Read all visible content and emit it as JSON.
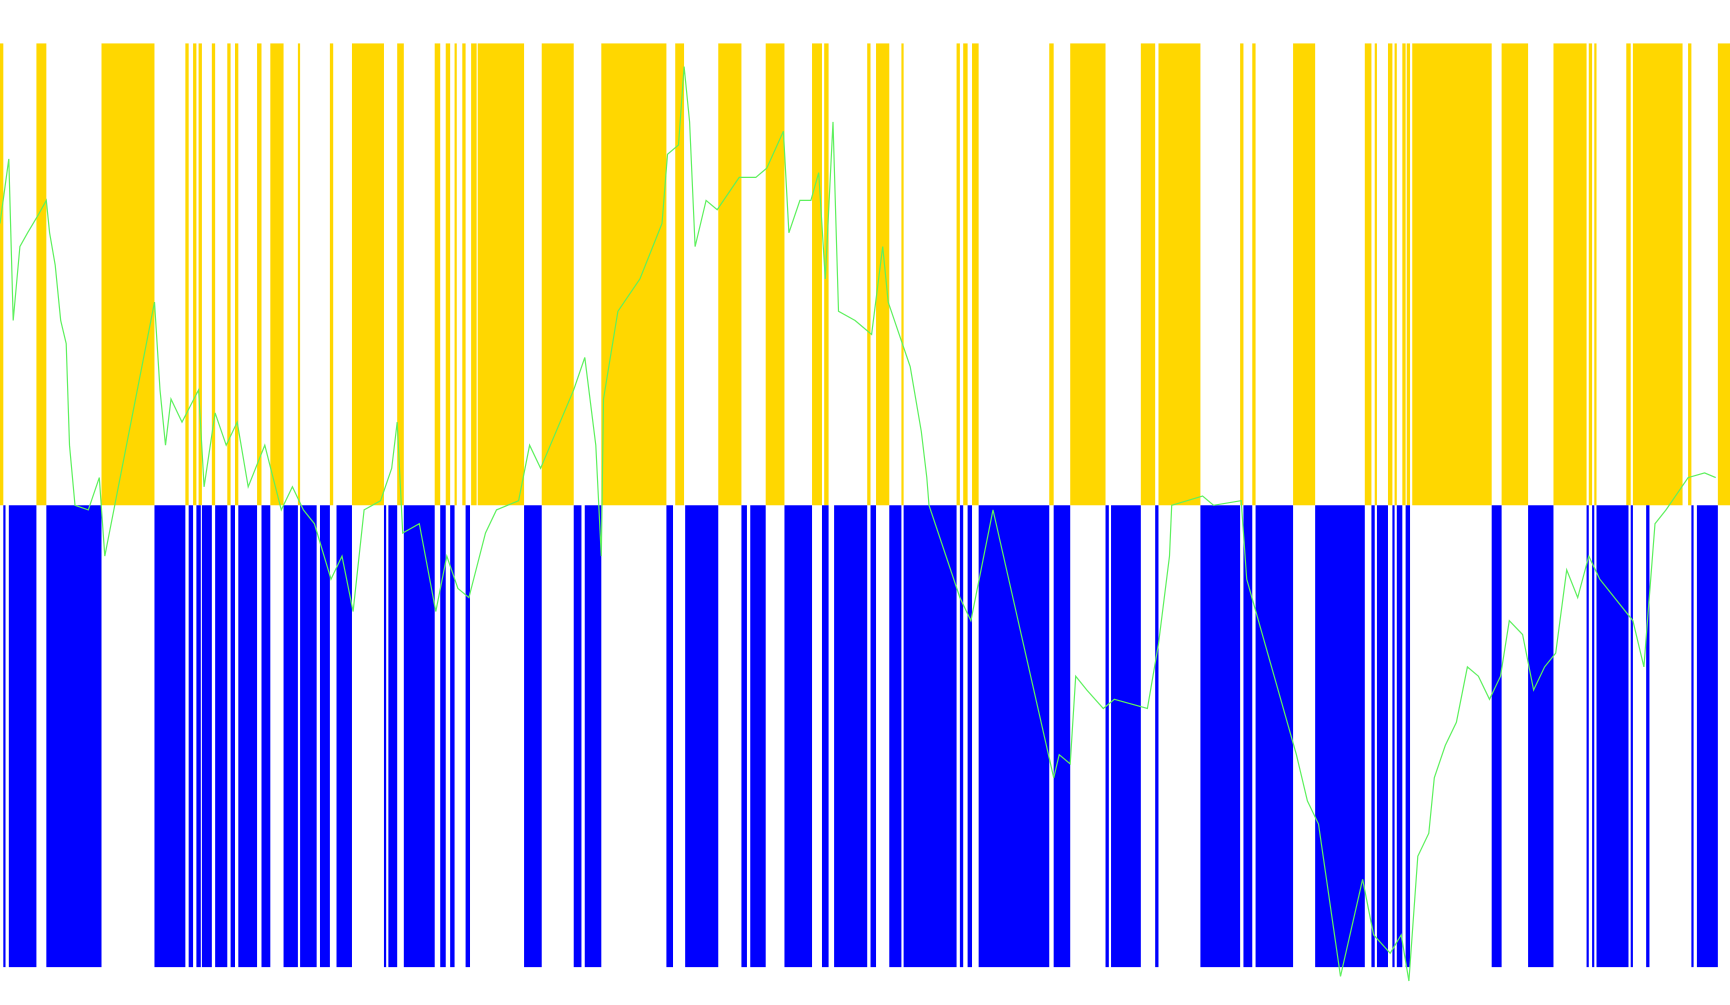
{
  "chart_data": {
    "type": "signal",
    "xlim": [
      0,
      1568
    ],
    "ylim": [
      -1.082,
      1.094
    ],
    "up": {
      "color": "#ffd700",
      "level": 1,
      "spans": [
        [
          0,
          3
        ],
        [
          33,
          42
        ],
        [
          92,
          140
        ],
        [
          168,
          171
        ],
        [
          175,
          178
        ],
        [
          180,
          183
        ],
        [
          192,
          195
        ],
        [
          206,
          209
        ],
        [
          213,
          216
        ],
        [
          233,
          237
        ],
        [
          245,
          257
        ],
        [
          270,
          272
        ],
        [
          299,
          302
        ],
        [
          319,
          348
        ],
        [
          360,
          366
        ],
        [
          394,
          399
        ],
        [
          404,
          408
        ],
        [
          412,
          414
        ],
        [
          419,
          422
        ],
        [
          427,
          432
        ],
        [
          433,
          475
        ],
        [
          491,
          520
        ],
        [
          545,
          604
        ],
        [
          612,
          620
        ],
        [
          651,
          672
        ],
        [
          694,
          711
        ],
        [
          736,
          745
        ],
        [
          747,
          751
        ],
        [
          786,
          789
        ],
        [
          794,
          806
        ],
        [
          817,
          819
        ],
        [
          867,
          870
        ],
        [
          873,
          877
        ],
        [
          881,
          887
        ],
        [
          951,
          955
        ],
        [
          970,
          1002
        ],
        [
          1034,
          1047
        ],
        [
          1050,
          1088
        ],
        [
          1124,
          1127
        ],
        [
          1135,
          1138
        ],
        [
          1172,
          1192
        ],
        [
          1237,
          1243
        ],
        [
          1246,
          1248
        ],
        [
          1258,
          1262
        ],
        [
          1264,
          1266
        ],
        [
          1271,
          1274
        ],
        [
          1275,
          1278
        ],
        [
          1280,
          1352
        ],
        [
          1361,
          1385
        ],
        [
          1408,
          1438
        ],
        [
          1440,
          1443
        ],
        [
          1445,
          1447
        ],
        [
          1474,
          1478
        ],
        [
          1480,
          1525
        ],
        [
          1530,
          1533
        ],
        [
          1557,
          1568
        ]
      ]
    },
    "down": {
      "color": "#0000ff",
      "level": -1,
      "spans": [
        [
          3,
          5
        ],
        [
          8,
          33
        ],
        [
          42,
          92
        ],
        [
          140,
          168
        ],
        [
          171,
          175
        ],
        [
          178,
          182
        ],
        [
          183,
          192
        ],
        [
          195,
          206
        ],
        [
          209,
          213
        ],
        [
          216,
          233
        ],
        [
          237,
          245
        ],
        [
          257,
          270
        ],
        [
          272,
          287
        ],
        [
          290,
          299
        ],
        [
          305,
          319
        ],
        [
          348,
          350
        ],
        [
          352,
          360
        ],
        [
          366,
          394
        ],
        [
          399,
          404
        ],
        [
          408,
          412
        ],
        [
          422,
          426
        ],
        [
          475,
          491
        ],
        [
          520,
          527
        ],
        [
          530,
          545
        ],
        [
          604,
          610
        ],
        [
          621,
          651
        ],
        [
          672,
          677
        ],
        [
          680,
          694
        ],
        [
          711,
          736
        ],
        [
          745,
          751
        ],
        [
          756,
          786
        ],
        [
          789,
          794
        ],
        [
          806,
          817
        ],
        [
          819,
          867
        ],
        [
          870,
          873
        ],
        [
          877,
          881
        ],
        [
          887,
          951
        ],
        [
          955,
          970
        ],
        [
          1002,
          1005
        ],
        [
          1007,
          1034
        ],
        [
          1047,
          1050
        ],
        [
          1088,
          1124
        ],
        [
          1127,
          1135
        ],
        [
          1138,
          1172
        ],
        [
          1192,
          1237
        ],
        [
          1243,
          1246
        ],
        [
          1248,
          1258
        ],
        [
          1262,
          1264
        ],
        [
          1266,
          1271
        ],
        [
          1274,
          1278
        ],
        [
          1352,
          1361
        ],
        [
          1385,
          1408
        ],
        [
          1438,
          1440
        ],
        [
          1443,
          1445
        ],
        [
          1447,
          1476
        ],
        [
          1478,
          1480
        ],
        [
          1492,
          1495
        ],
        [
          1533,
          1535
        ],
        [
          1538,
          1557
        ]
      ]
    },
    "line": {
      "color": "#5ef05e",
      "x": [
        0,
        8,
        12,
        18,
        25,
        35,
        42,
        45,
        50,
        55,
        60,
        63,
        68,
        80,
        90,
        95,
        140,
        145,
        150,
        155,
        165,
        180,
        185,
        195,
        205,
        215,
        225,
        240,
        255,
        265,
        275,
        285,
        300,
        310,
        320,
        330,
        345,
        355,
        360,
        365,
        380,
        395,
        405,
        415,
        425,
        440,
        450,
        470,
        480,
        490,
        520,
        530,
        540,
        545,
        547,
        560,
        580,
        600,
        605,
        615,
        620,
        625,
        630,
        640,
        650,
        670,
        685,
        695,
        710,
        715,
        725,
        735,
        742,
        748,
        755,
        760,
        775,
        790,
        800,
        805,
        815,
        825,
        835,
        840,
        842,
        870,
        880,
        900,
        955,
        960,
        970,
        975,
        985,
        1000,
        1010,
        1040,
        1050,
        1060,
        1062,
        1090,
        1100,
        1125,
        1130,
        1175,
        1185,
        1195,
        1215,
        1235,
        1245,
        1260,
        1270,
        1277,
        1285,
        1295,
        1300,
        1310,
        1320,
        1330,
        1340,
        1350,
        1360,
        1368,
        1380,
        1390,
        1400,
        1410,
        1420,
        1430,
        1440,
        1450,
        1480,
        1490,
        1500,
        1510,
        1530,
        1545,
        1555
      ],
      "values": [
        0.61,
        0.75,
        0.4,
        0.56,
        0.59,
        0.63,
        0.66,
        0.59,
        0.52,
        0.4,
        0.35,
        0.13,
        0,
        -0.01,
        0.06,
        -0.11,
        0.44,
        0.25,
        0.13,
        0.23,
        0.18,
        0.25,
        0.04,
        0.2,
        0.13,
        0.18,
        0.04,
        0.13,
        -0.01,
        0.04,
        -0.01,
        -0.04,
        -0.16,
        -0.11,
        -0.23,
        -0.01,
        0.01,
        0.08,
        0.18,
        -0.06,
        -0.04,
        -0.23,
        -0.11,
        -0.18,
        -0.2,
        -0.06,
        -0.01,
        0.01,
        0.13,
        0.08,
        0.25,
        0.32,
        0.13,
        -0.11,
        0.23,
        0.42,
        0.49,
        0.61,
        0.76,
        0.78,
        0.95,
        0.83,
        0.56,
        0.66,
        0.64,
        0.71,
        0.71,
        0.73,
        0.81,
        0.59,
        0.66,
        0.66,
        0.72,
        0.49,
        0.83,
        0.42,
        0.4,
        0.37,
        0.56,
        0.44,
        0.37,
        0.3,
        0.16,
        0.06,
        0,
        -0.2,
        -0.25,
        -0.01,
        -0.59,
        -0.54,
        -0.56,
        -0.37,
        -0.4,
        -0.44,
        -0.42,
        -0.44,
        -0.3,
        -0.11,
        0,
        0.02,
        0,
        0.01,
        -0.16,
        -0.54,
        -0.64,
        -0.69,
        -1.02,
        -0.81,
        -0.93,
        -0.97,
        -0.93,
        -1.03,
        -0.76,
        -0.71,
        -0.59,
        -0.52,
        -0.47,
        -0.35,
        -0.37,
        -0.42,
        -0.37,
        -0.25,
        -0.28,
        -0.4,
        -0.35,
        -0.32,
        -0.14,
        -0.2,
        -0.11,
        -0.16,
        -0.25,
        -0.35,
        -0.04,
        -0.01,
        0.06,
        0.07,
        0.06
      ]
    }
  }
}
